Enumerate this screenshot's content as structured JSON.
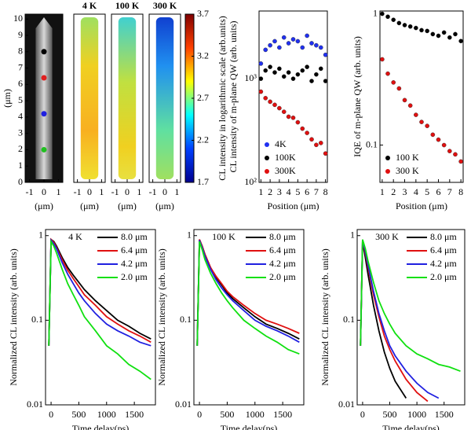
{
  "chart_data": [
    {
      "type": "image",
      "xlabel": "(μm)",
      "ylabel": "(μm)",
      "xlim": [
        -1.3,
        1.3
      ],
      "xticks": [
        -1,
        0,
        1
      ],
      "ylim": [
        0,
        10.3
      ],
      "yticks": [
        0,
        1,
        2,
        3,
        4,
        5,
        6,
        7,
        8,
        9,
        10
      ],
      "marker_y": [
        8,
        6.4,
        4.2,
        2.0
      ],
      "marker_colors": [
        "#000000",
        "#e02020",
        "#2020e0",
        "#20c020"
      ]
    },
    {
      "type": "heatmap",
      "panel_titles": [
        "4 K",
        "100 K",
        "300 K"
      ],
      "xlabel": "(μm)",
      "xlim": [
        -1.3,
        1.3
      ],
      "xticks": [
        -1,
        0,
        1
      ],
      "clim": [
        1.7,
        3.7
      ],
      "cticks": [
        1.7,
        2.2,
        2.7,
        3.2,
        3.7
      ],
      "clabel": "CL intensity in logarithmic scale (arb.units)"
    },
    {
      "type": "scatter",
      "xlabel": "Position (μm)",
      "ylabel": "CL intensity of m-plane QW (arb. units)",
      "xlim": [
        0.8,
        8.2
      ],
      "xticks": [
        1,
        2,
        3,
        4,
        5,
        6,
        7,
        8
      ],
      "log_y": true,
      "ylim": [
        100,
        4500
      ],
      "yticks": [
        {
          "value": 100,
          "label": "10²"
        },
        {
          "value": 1000,
          "label": "10³"
        }
      ],
      "legend": "lower left",
      "x": [
        1,
        1.5,
        2,
        2.5,
        3,
        3.5,
        4,
        4.5,
        5,
        5.5,
        6,
        6.5,
        7,
        7.5,
        8
      ],
      "series": [
        {
          "name": "4K",
          "color": "#2030f0",
          "values": [
            1400,
            1900,
            2100,
            2300,
            2000,
            2500,
            2200,
            2400,
            2300,
            2000,
            2600,
            2200,
            2100,
            2000,
            1700
          ]
        },
        {
          "name": "100K",
          "color": "#000000",
          "values": [
            1000,
            1200,
            1300,
            1150,
            1250,
            1050,
            1150,
            1000,
            1100,
            1200,
            1300,
            950,
            1100,
            1250,
            950
          ]
        },
        {
          "name": "300K",
          "color": "#e01010",
          "values": [
            750,
            650,
            600,
            560,
            520,
            480,
            430,
            420,
            380,
            330,
            300,
            260,
            230,
            240,
            190
          ]
        }
      ]
    },
    {
      "type": "scatter",
      "xlabel": "Position (μm)",
      "ylabel": "IQE of m-plane QW (arb. units)",
      "xlim": [
        0.8,
        8.2
      ],
      "xticks": [
        1,
        2,
        3,
        4,
        5,
        6,
        7,
        8
      ],
      "log_y": true,
      "ylim": [
        0.052,
        1.05
      ],
      "yticks": [
        0.1,
        1
      ],
      "legend": "lower left",
      "x": [
        1,
        1.5,
        2,
        2.5,
        3,
        3.5,
        4,
        4.5,
        5,
        5.5,
        6,
        6.5,
        7,
        7.5,
        8
      ],
      "series": [
        {
          "name": "100 K",
          "color": "#000000",
          "values": [
            1,
            0.95,
            0.9,
            0.85,
            0.82,
            0.8,
            0.78,
            0.75,
            0.74,
            0.7,
            0.68,
            0.72,
            0.66,
            0.7,
            0.62
          ]
        },
        {
          "name": "300 K",
          "color": "#e01010",
          "values": [
            0.45,
            0.35,
            0.3,
            0.27,
            0.22,
            0.2,
            0.17,
            0.15,
            0.14,
            0.12,
            0.11,
            0.1,
            0.09,
            0.085,
            0.075
          ]
        }
      ]
    },
    {
      "type": "line",
      "annotation": "4 K",
      "xlabel": "Time delay(ps)",
      "ylabel": "Normalized CL intensity (arb. units)",
      "xlim": [
        -100,
        1880
      ],
      "xticks": [
        0,
        500,
        1000,
        1500
      ],
      "log_y": true,
      "ylim": [
        0.01,
        1.18
      ],
      "yticks": [
        0.01,
        0.1,
        1
      ],
      "legend": "upper right",
      "x": [
        -40,
        0,
        50,
        100,
        200,
        300,
        400,
        500,
        600,
        800,
        1000,
        1200,
        1400,
        1600,
        1800
      ],
      "series": [
        {
          "name": "8.0 μm",
          "color": "#000000",
          "values": [
            0.05,
            0.9,
            0.85,
            0.75,
            0.55,
            0.42,
            0.34,
            0.28,
            0.23,
            0.17,
            0.13,
            0.1,
            0.085,
            0.07,
            0.06
          ]
        },
        {
          "name": "6.4 μm",
          "color": "#e01010",
          "values": [
            0.05,
            0.9,
            0.83,
            0.72,
            0.52,
            0.39,
            0.31,
            0.25,
            0.2,
            0.15,
            0.11,
            0.09,
            0.075,
            0.065,
            0.055
          ]
        },
        {
          "name": "4.2 μm",
          "color": "#2020e0",
          "values": [
            0.05,
            0.88,
            0.8,
            0.7,
            0.48,
            0.35,
            0.27,
            0.21,
            0.17,
            0.12,
            0.09,
            0.075,
            0.065,
            0.055,
            0.05
          ]
        },
        {
          "name": "2.0 μm",
          "color": "#10e010",
          "values": [
            0.05,
            0.85,
            0.75,
            0.62,
            0.4,
            0.27,
            0.2,
            0.15,
            0.11,
            0.075,
            0.05,
            0.04,
            0.03,
            0.025,
            0.02
          ]
        }
      ]
    },
    {
      "type": "line",
      "annotation": "100 K",
      "xlabel": "Time delay(ps)",
      "ylabel": "Normalized CL intensity (arb. units)",
      "xlim": [
        -100,
        1880
      ],
      "xticks": [
        0,
        500,
        1000,
        1500
      ],
      "log_y": true,
      "ylim": [
        0.01,
        1.18
      ],
      "yticks": [
        0.01,
        0.1,
        1
      ],
      "legend": "upper right",
      "x": [
        -40,
        0,
        50,
        100,
        200,
        300,
        400,
        500,
        600,
        800,
        1000,
        1200,
        1400,
        1600,
        1800
      ],
      "series": [
        {
          "name": "8.0 μm",
          "color": "#000000",
          "values": [
            0.05,
            0.9,
            0.75,
            0.6,
            0.42,
            0.32,
            0.26,
            0.21,
            0.18,
            0.14,
            0.11,
            0.09,
            0.08,
            0.07,
            0.06
          ]
        },
        {
          "name": "6.4 μm",
          "color": "#e01010",
          "values": [
            0.05,
            0.9,
            0.75,
            0.6,
            0.42,
            0.33,
            0.27,
            0.22,
            0.19,
            0.15,
            0.12,
            0.1,
            0.09,
            0.08,
            0.07
          ]
        },
        {
          "name": "4.2 μm",
          "color": "#2020e0",
          "values": [
            0.05,
            0.88,
            0.72,
            0.57,
            0.4,
            0.3,
            0.24,
            0.2,
            0.17,
            0.13,
            0.1,
            0.085,
            0.075,
            0.065,
            0.055
          ]
        },
        {
          "name": "2.0 μm",
          "color": "#10e010",
          "values": [
            0.05,
            0.85,
            0.68,
            0.52,
            0.36,
            0.27,
            0.21,
            0.17,
            0.14,
            0.1,
            0.08,
            0.065,
            0.055,
            0.045,
            0.04
          ]
        }
      ]
    },
    {
      "type": "line",
      "annotation": "300 K",
      "xlabel": "Time delay(ps)",
      "ylabel": "Normalized CL intensity (arb. units)",
      "xlim": [
        -100,
        1880
      ],
      "xticks": [
        0,
        500,
        1000,
        1500
      ],
      "log_y": true,
      "ylim": [
        0.01,
        1.18
      ],
      "yticks": [
        0.01,
        0.1,
        1
      ],
      "legend": "upper right",
      "x": [
        -40,
        0,
        50,
        100,
        200,
        300,
        400,
        500,
        600,
        800,
        1000,
        1200,
        1400,
        1600,
        1800
      ],
      "series": [
        {
          "name": "8.0 μm",
          "color": "#000000",
          "values": [
            0.05,
            0.85,
            0.55,
            0.35,
            0.15,
            0.075,
            0.042,
            0.027,
            0.019,
            0.012,
            null,
            null,
            null,
            null,
            null
          ]
        },
        {
          "name": "6.4 μm",
          "color": "#e01010",
          "values": [
            0.05,
            0.88,
            0.62,
            0.42,
            0.2,
            0.11,
            0.065,
            0.045,
            0.033,
            0.02,
            0.014,
            0.011,
            null,
            null,
            null
          ]
        },
        {
          "name": "4.2 μm",
          "color": "#2020e0",
          "values": [
            0.05,
            0.88,
            0.65,
            0.45,
            0.22,
            0.12,
            0.075,
            0.05,
            0.038,
            0.025,
            0.018,
            0.014,
            0.012,
            null,
            null
          ]
        },
        {
          "name": "2.0 μm",
          "color": "#10e010",
          "values": [
            0.05,
            0.9,
            0.7,
            0.5,
            0.28,
            0.17,
            0.12,
            0.09,
            0.07,
            0.05,
            0.04,
            0.035,
            0.03,
            0.028,
            0.025
          ]
        }
      ]
    }
  ]
}
